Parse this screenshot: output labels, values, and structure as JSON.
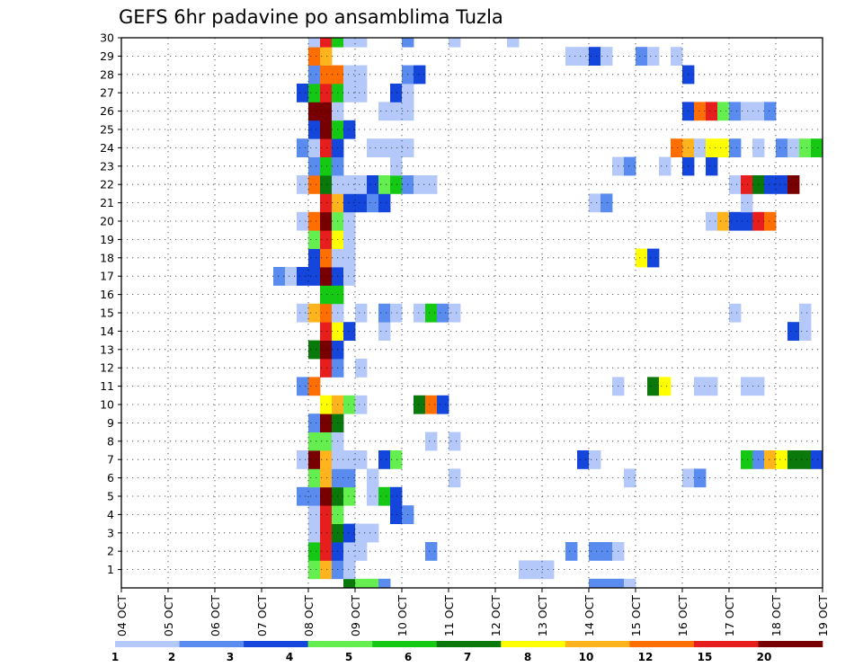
{
  "chart_data": {
    "type": "heatmap",
    "title": "GEFS 6hr padavine po ansamblima Tuzla",
    "xlabel": "",
    "ylabel": "",
    "x_tick_labels": [
      "04 OCT",
      "05 OCT",
      "06 OCT",
      "07 OCT",
      "08 OCT",
      "09 OCT",
      "10 OCT",
      "11 OCT",
      "12 OCT",
      "13 OCT",
      "14 OCT",
      "15 OCT",
      "16 OCT",
      "17 OCT",
      "18 OCT",
      "19 OCT"
    ],
    "y_tick_labels": [
      "1",
      "2",
      "3",
      "4",
      "5",
      "6",
      "7",
      "8",
      "9",
      "10",
      "11",
      "12",
      "13",
      "14",
      "15",
      "16",
      "17",
      "18",
      "19",
      "20",
      "21",
      "22",
      "23",
      "24",
      "25",
      "26",
      "27",
      "28",
      "29",
      "30"
    ],
    "time_steps_per_day": 4,
    "steps": 60,
    "ylim": [
      0,
      30
    ],
    "grid": true,
    "legend": {
      "position": "bottom",
      "colors": [
        "#b4c8fa",
        "#5a8cf0",
        "#1446dc",
        "#64ee50",
        "#14c814",
        "#0a780a",
        "#ffff00",
        "#ffb41e",
        "#ff6e00",
        "#e61e1e",
        "#780000"
      ],
      "labels": [
        "1",
        "2",
        "3",
        "4",
        "5",
        "6",
        "7",
        "8",
        "10",
        "12",
        "15",
        "20"
      ]
    },
    "series": [
      {
        "member": 0,
        "values": {
          "19": 6,
          "20": 4,
          "21": 4,
          "22": 2,
          "40": 2,
          "41": 2,
          "42": 2,
          "43": 1
        }
      },
      {
        "member": 1,
        "values": {
          "16": 4,
          "17": 8,
          "18": 2,
          "19": 1,
          "34": 1,
          "35": 1,
          "36": 1
        }
      },
      {
        "member": 2,
        "values": {
          "16": 5,
          "17": 10,
          "18": 3,
          "19": 1,
          "20": 1,
          "26": 2,
          "38": 2,
          "40": 2,
          "41": 2,
          "42": 1
        }
      },
      {
        "member": 3,
        "values": {
          "16": 1,
          "17": 10,
          "18": 6,
          "19": 3,
          "20": 1,
          "21": 1
        }
      },
      {
        "member": 4,
        "values": {
          "16": 1,
          "17": 10,
          "18": 4,
          "23": 3,
          "24": 2
        }
      },
      {
        "member": 5,
        "values": {
          "15": 2,
          "16": 2,
          "17": 11,
          "18": 6,
          "19": 4,
          "21": 1,
          "22": 5,
          "23": 3
        }
      },
      {
        "member": 6,
        "values": {
          "16": 4,
          "17": 8,
          "18": 2,
          "19": 2,
          "21": 1,
          "28": 1,
          "43": 1,
          "48": 1,
          "49": 2
        }
      },
      {
        "member": 7,
        "values": {
          "15": 1,
          "16": 11,
          "17": 8,
          "18": 1,
          "19": 1,
          "20": 1,
          "22": 3,
          "23": 4,
          "39": 3,
          "40": 1,
          "53": 5,
          "54": 2,
          "55": 8,
          "56": 7,
          "57": 6,
          "58": 6,
          "59": 3
        }
      },
      {
        "member": 8,
        "values": {
          "16": 4,
          "17": 4,
          "18": 1,
          "26": 1,
          "28": 1
        }
      },
      {
        "member": 9,
        "values": {
          "16": 2,
          "17": 11,
          "18": 6
        }
      },
      {
        "member": 10,
        "values": {
          "17": 7,
          "18": 8,
          "19": 4,
          "20": 1,
          "25": 6,
          "26": 9,
          "27": 3
        }
      },
      {
        "member": 11,
        "values": {
          "15": 2,
          "16": 9,
          "42": 1,
          "45": 6,
          "46": 7,
          "49": 1,
          "50": 1,
          "53": 1,
          "54": 1
        }
      },
      {
        "member": 12,
        "values": {
          "17": 10,
          "18": 2,
          "20": 1
        }
      },
      {
        "member": 13,
        "values": {
          "16": 6,
          "17": 11,
          "18": 3
        }
      },
      {
        "member": 14,
        "values": {
          "17": 10,
          "18": 7,
          "19": 3,
          "22": 1,
          "57": 3,
          "58": 1
        }
      },
      {
        "member": 15,
        "values": {
          "15": 1,
          "16": 8,
          "17": 9,
          "18": 1,
          "20": 1,
          "22": 2,
          "23": 1,
          "25": 1,
          "26": 5,
          "27": 2,
          "28": 1,
          "52": 1,
          "58": 1
        }
      },
      {
        "member": 16,
        "values": {
          "17": 5,
          "18": 5
        }
      },
      {
        "member": 17,
        "values": {
          "13": 2,
          "14": 1,
          "15": 3,
          "16": 3,
          "17": 11,
          "18": 3,
          "19": 1
        }
      },
      {
        "member": 18,
        "values": {
          "16": 3,
          "17": 9,
          "18": 1,
          "19": 1,
          "44": 7,
          "45": 3
        }
      },
      {
        "member": 19,
        "values": {
          "16": 4,
          "17": 10,
          "18": 7,
          "19": 1
        }
      },
      {
        "member": 20,
        "values": {
          "15": 1,
          "16": 9,
          "17": 11,
          "18": 4,
          "19": 1,
          "50": 1,
          "51": 8,
          "52": 3,
          "53": 3,
          "54": 10,
          "55": 9
        }
      },
      {
        "member": 21,
        "values": {
          "17": 10,
          "18": 8,
          "19": 3,
          "20": 3,
          "21": 2,
          "22": 3,
          "40": 1,
          "41": 2,
          "53": 1
        }
      },
      {
        "member": 22,
        "values": {
          "15": 1,
          "16": 9,
          "17": 6,
          "18": 1,
          "19": 1,
          "20": 1,
          "21": 3,
          "22": 4,
          "23": 5,
          "24": 2,
          "25": 1,
          "26": 1,
          "52": 1,
          "53": 10,
          "54": 6,
          "55": 3,
          "56": 3,
          "57": 11
        }
      },
      {
        "member": 23,
        "values": {
          "16": 2,
          "17": 5,
          "18": 2,
          "23": 1,
          "42": 1,
          "43": 2,
          "46": 1,
          "48": 3,
          "50": 3
        }
      },
      {
        "member": 24,
        "values": {
          "15": 2,
          "16": 1,
          "17": 10,
          "18": 3,
          "21": 1,
          "22": 1,
          "23": 1,
          "24": 1,
          "47": 9,
          "48": 8,
          "49": 1,
          "50": 7,
          "51": 7,
          "52": 2,
          "54": 1,
          "56": 2,
          "57": 1,
          "58": 4,
          "59": 5
        }
      },
      {
        "member": 25,
        "values": {
          "16": 3,
          "17": 11,
          "18": 5,
          "19": 3
        }
      },
      {
        "member": 26,
        "values": {
          "16": 11,
          "17": 11,
          "18": 1,
          "22": 1,
          "23": 1,
          "24": 1,
          "48": 3,
          "49": 9,
          "50": 10,
          "51": 4,
          "52": 2,
          "53": 1,
          "54": 1,
          "55": 2
        }
      },
      {
        "member": 27,
        "values": {
          "15": 3,
          "16": 5,
          "17": 10,
          "18": 5,
          "19": 1,
          "20": 1,
          "23": 3,
          "24": 1
        }
      },
      {
        "member": 28,
        "values": {
          "16": 2,
          "17": 9,
          "18": 9,
          "19": 1,
          "20": 1,
          "24": 2,
          "25": 3,
          "48": 3
        }
      },
      {
        "member": 29,
        "values": {
          "16": 9,
          "17": 8,
          "38": 1,
          "39": 1,
          "40": 3,
          "41": 1,
          "44": 2,
          "45": 1,
          "47": 1
        }
      },
      {
        "member": 30,
        "values": {
          "16": 1,
          "17": 10,
          "18": 5,
          "19": 1,
          "20": 1,
          "24": 2,
          "28": 1,
          "33": 1
        }
      }
    ]
  }
}
